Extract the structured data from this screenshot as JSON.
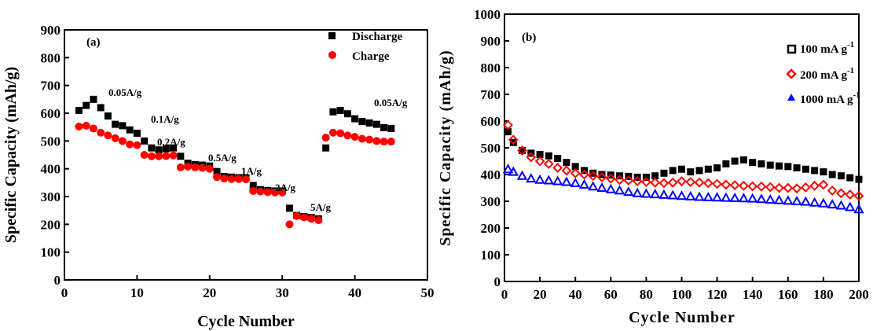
{
  "chart_data": [
    {
      "type": "scatter",
      "panel_label": "(a)",
      "xlabel": "Cycle Number",
      "ylabel": "Specific Capacity (mAh/g)",
      "xlim": [
        0,
        50
      ],
      "ylim": [
        0,
        900
      ],
      "xticks": [
        0,
        10,
        20,
        30,
        40,
        50
      ],
      "yticks": [
        0,
        100,
        200,
        300,
        400,
        500,
        600,
        700,
        800,
        900
      ],
      "grid": false,
      "legend_position": "top-right",
      "series": [
        {
          "name": "Discharge",
          "marker": "square",
          "color": "#000000",
          "x": [
            2,
            3,
            4,
            5,
            6,
            7,
            8,
            9,
            10,
            11,
            12,
            13,
            14,
            15,
            16,
            17,
            18,
            19,
            20,
            21,
            22,
            23,
            24,
            25,
            26,
            27,
            28,
            29,
            30,
            31,
            32,
            33,
            34,
            35,
            36,
            37,
            38,
            39,
            40,
            41,
            42,
            43,
            44,
            45
          ],
          "y": [
            610,
            628,
            650,
            620,
            590,
            560,
            555,
            540,
            528,
            500,
            475,
            468,
            472,
            475,
            445,
            420,
            415,
            413,
            410,
            390,
            372,
            370,
            368,
            367,
            340,
            325,
            322,
            320,
            320,
            258,
            232,
            228,
            225,
            220,
            475,
            605,
            610,
            598,
            580,
            570,
            565,
            560,
            548,
            545
          ]
        },
        {
          "name": "Charge",
          "marker": "circle",
          "color": "#ff0000",
          "x": [
            2,
            3,
            4,
            5,
            6,
            7,
            8,
            9,
            10,
            11,
            12,
            13,
            14,
            15,
            16,
            17,
            18,
            19,
            20,
            21,
            22,
            23,
            24,
            25,
            26,
            27,
            28,
            29,
            30,
            31,
            32,
            33,
            34,
            35,
            36,
            37,
            38,
            39,
            40,
            41,
            42,
            43,
            44,
            45
          ],
          "y": [
            552,
            555,
            545,
            530,
            520,
            510,
            500,
            488,
            485,
            450,
            445,
            445,
            446,
            448,
            405,
            408,
            405,
            403,
            400,
            370,
            365,
            363,
            363,
            362,
            320,
            318,
            316,
            315,
            315,
            200,
            230,
            225,
            220,
            215,
            512,
            530,
            528,
            520,
            515,
            508,
            505,
            500,
            498,
            498
          ]
        }
      ],
      "annotations": [
        "0.05A/g",
        "0.1A/g",
        "0.2A/g",
        "0.5A/g",
        "1A/g",
        "2A/g",
        "5A/g",
        "0.05A/g"
      ]
    },
    {
      "type": "scatter",
      "panel_label": "(b)",
      "xlabel": "Cycle Number",
      "ylabel": "Specific Capacity (mAh/g)",
      "xlim": [
        0,
        200
      ],
      "ylim": [
        0,
        1000
      ],
      "xticks": [
        0,
        20,
        40,
        60,
        80,
        100,
        120,
        140,
        160,
        180,
        200
      ],
      "yticks": [
        0,
        100,
        200,
        300,
        400,
        500,
        600,
        700,
        800,
        900,
        1000
      ],
      "grid": false,
      "legend_position": "top-right",
      "series": [
        {
          "name": "100 mA g-1",
          "legend_base": "100 mA g",
          "legend_sup": "-1",
          "marker": "square",
          "color": "#000000",
          "x": [
            2,
            5,
            10,
            15,
            20,
            25,
            30,
            35,
            40,
            45,
            50,
            55,
            60,
            65,
            70,
            75,
            80,
            85,
            90,
            95,
            100,
            105,
            110,
            115,
            120,
            125,
            130,
            135,
            140,
            145,
            150,
            155,
            160,
            165,
            170,
            175,
            180,
            185,
            190,
            195,
            200
          ],
          "y": [
            560,
            520,
            490,
            480,
            475,
            470,
            460,
            445,
            430,
            415,
            405,
            400,
            398,
            395,
            393,
            390,
            390,
            395,
            405,
            415,
            420,
            410,
            415,
            420,
            425,
            440,
            450,
            455,
            445,
            440,
            435,
            432,
            430,
            425,
            420,
            415,
            410,
            400,
            395,
            388,
            382
          ]
        },
        {
          "name": "200 mA g-1",
          "legend_base": "200 mA g",
          "legend_sup": "-1",
          "marker": "diamond",
          "color": "#ff0000",
          "x": [
            2,
            5,
            10,
            15,
            20,
            25,
            30,
            35,
            40,
            45,
            50,
            55,
            60,
            65,
            70,
            75,
            80,
            85,
            90,
            95,
            100,
            105,
            110,
            115,
            120,
            125,
            130,
            135,
            140,
            145,
            150,
            155,
            160,
            165,
            170,
            175,
            180,
            185,
            190,
            195,
            200
          ],
          "y": [
            585,
            530,
            490,
            465,
            450,
            440,
            425,
            415,
            405,
            400,
            395,
            390,
            385,
            380,
            378,
            375,
            372,
            370,
            368,
            370,
            375,
            372,
            370,
            368,
            365,
            362,
            360,
            358,
            356,
            355,
            353,
            350,
            350,
            348,
            352,
            358,
            362,
            340,
            330,
            325,
            320
          ]
        },
        {
          "name": "1000 mA g-1",
          "legend_base": "1000 mA g",
          "legend_sup": "-1",
          "marker": "triangle",
          "color": "#0000ff",
          "x": [
            2,
            5,
            10,
            15,
            20,
            25,
            30,
            35,
            40,
            45,
            50,
            55,
            60,
            65,
            70,
            75,
            80,
            85,
            90,
            95,
            100,
            105,
            110,
            115,
            120,
            125,
            130,
            135,
            140,
            145,
            150,
            155,
            160,
            165,
            170,
            175,
            180,
            185,
            190,
            195,
            200
          ],
          "y": [
            420,
            410,
            395,
            385,
            380,
            378,
            375,
            372,
            368,
            362,
            355,
            350,
            345,
            340,
            335,
            330,
            328,
            326,
            324,
            322,
            320,
            318,
            316,
            315,
            314,
            313,
            312,
            311,
            310,
            308,
            306,
            304,
            302,
            300,
            298,
            295,
            292,
            288,
            284,
            278,
            270
          ]
        }
      ]
    }
  ]
}
